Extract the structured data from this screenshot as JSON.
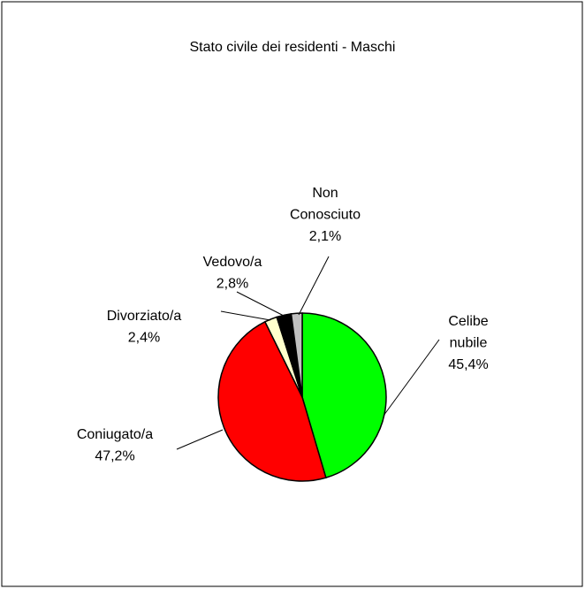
{
  "chart_data": {
    "type": "pie",
    "title": "Stato civile dei residenti - Maschi",
    "categories": [
      "Celibe nubile",
      "Coniugato/a",
      "Divorziato/a",
      "Vedovo/a",
      "Non Conosciuto"
    ],
    "values": [
      45.4,
      47.2,
      2.4,
      2.8,
      2.1
    ],
    "value_labels": [
      "45,4%",
      "47,2%",
      "2,4%",
      "2,8%",
      "2,1%"
    ],
    "colors": [
      "#00ff00",
      "#ff0000",
      "#ffffcc",
      "#000000",
      "#c0c0c0"
    ]
  }
}
